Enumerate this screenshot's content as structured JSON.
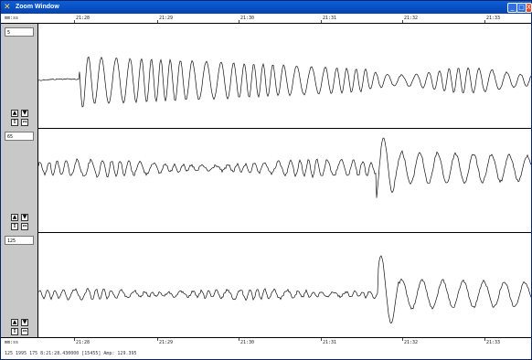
{
  "window": {
    "title": "Zoom Window",
    "buttons": {
      "minimize": "_",
      "maximize": "□",
      "close": "X"
    }
  },
  "timebar": {
    "unit_label": "mm:ss",
    "ticks": [
      "21:28",
      "21:29",
      "21:30",
      "21:31",
      "21:32",
      "21:33"
    ]
  },
  "channels": [
    {
      "label": "5"
    },
    {
      "label": "65"
    },
    {
      "label": "125"
    }
  ],
  "channel_buttons": {
    "up": "▲",
    "down": "▼",
    "expand": "⇕",
    "shrink": "⇔"
  },
  "status": {
    "text": "125 1995 175 8:21:28.430000 [15455] Amp: 129.395"
  }
}
